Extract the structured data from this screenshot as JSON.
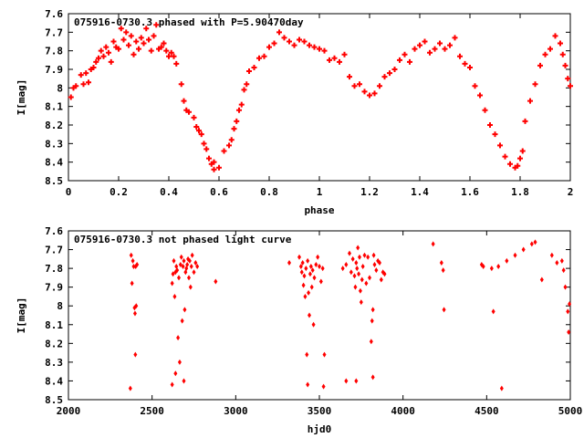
{
  "chart_data": [
    {
      "type": "scatter",
      "title": "075916-0730.3 phased with P=5.90470day",
      "xlabel": "phase",
      "ylabel": "I[mag]",
      "xlim": [
        0,
        2
      ],
      "ylim": [
        8.5,
        7.6
      ],
      "y_reversed": true,
      "grid": false,
      "marker_color": "#ff0000",
      "marker": "plus-filled",
      "xticks": [
        "0",
        "0.2",
        "0.4",
        "0.6",
        "0.8",
        "1",
        "1.2",
        "1.4",
        "1.6",
        "1.8",
        "2"
      ],
      "yticks": [
        "7.6",
        "7.7",
        "7.8",
        "7.9",
        "8",
        "8.1",
        "8.2",
        "8.3",
        "8.4",
        "8.5"
      ],
      "points": [
        [
          0.01,
          8.05
        ],
        [
          0.02,
          8.0
        ],
        [
          0.03,
          7.99
        ],
        [
          0.05,
          7.93
        ],
        [
          0.06,
          7.98
        ],
        [
          0.07,
          7.92
        ],
        [
          0.08,
          7.97
        ],
        [
          0.09,
          7.9
        ],
        [
          0.1,
          7.89
        ],
        [
          0.11,
          7.86
        ],
        [
          0.12,
          7.84
        ],
        [
          0.13,
          7.8
        ],
        [
          0.14,
          7.83
        ],
        [
          0.15,
          7.78
        ],
        [
          0.16,
          7.81
        ],
        [
          0.17,
          7.86
        ],
        [
          0.18,
          7.75
        ],
        [
          0.19,
          7.78
        ],
        [
          0.2,
          7.79
        ],
        [
          0.21,
          7.68
        ],
        [
          0.22,
          7.74
        ],
        [
          0.23,
          7.7
        ],
        [
          0.24,
          7.77
        ],
        [
          0.25,
          7.72
        ],
        [
          0.26,
          7.82
        ],
        [
          0.27,
          7.75
        ],
        [
          0.28,
          7.79
        ],
        [
          0.29,
          7.73
        ],
        [
          0.3,
          7.76
        ],
        [
          0.31,
          7.68
        ],
        [
          0.32,
          7.74
        ],
        [
          0.33,
          7.8
        ],
        [
          0.34,
          7.72
        ],
        [
          0.35,
          7.66
        ],
        [
          0.36,
          7.79
        ],
        [
          0.37,
          7.78
        ],
        [
          0.38,
          7.76
        ],
        [
          0.39,
          7.8
        ],
        [
          0.4,
          7.83
        ],
        [
          0.41,
          7.81
        ],
        [
          0.42,
          7.83
        ],
        [
          0.43,
          7.87
        ],
        [
          0.45,
          7.98
        ],
        [
          0.46,
          8.07
        ],
        [
          0.47,
          8.12
        ],
        [
          0.48,
          8.13
        ],
        [
          0.5,
          8.16
        ],
        [
          0.51,
          8.21
        ],
        [
          0.52,
          8.23
        ],
        [
          0.53,
          8.25
        ],
        [
          0.54,
          8.3
        ],
        [
          0.55,
          8.33
        ],
        [
          0.56,
          8.38
        ],
        [
          0.57,
          8.41
        ],
        [
          0.58,
          8.4
        ],
        [
          0.58,
          8.44
        ],
        [
          0.6,
          8.43
        ],
        [
          0.62,
          8.34
        ],
        [
          0.64,
          8.31
        ],
        [
          0.65,
          8.28
        ],
        [
          0.66,
          8.22
        ],
        [
          0.67,
          8.18
        ],
        [
          0.68,
          8.12
        ],
        [
          0.69,
          8.09
        ],
        [
          0.7,
          8.01
        ],
        [
          0.71,
          7.98
        ],
        [
          0.72,
          7.91
        ],
        [
          0.74,
          7.89
        ],
        [
          0.76,
          7.84
        ],
        [
          0.78,
          7.83
        ],
        [
          0.8,
          7.78
        ],
        [
          0.82,
          7.76
        ],
        [
          0.84,
          7.7
        ],
        [
          0.86,
          7.73
        ],
        [
          0.88,
          7.75
        ],
        [
          0.9,
          7.77
        ],
        [
          0.92,
          7.74
        ],
        [
          0.94,
          7.75
        ],
        [
          0.96,
          7.77
        ],
        [
          0.98,
          7.78
        ],
        [
          1.0,
          7.79
        ],
        [
          1.02,
          7.8
        ],
        [
          1.04,
          7.85
        ],
        [
          1.06,
          7.84
        ],
        [
          1.08,
          7.86
        ],
        [
          1.1,
          7.82
        ],
        [
          1.12,
          7.94
        ],
        [
          1.14,
          7.99
        ],
        [
          1.16,
          7.98
        ],
        [
          1.18,
          8.02
        ],
        [
          1.2,
          8.04
        ],
        [
          1.22,
          8.03
        ],
        [
          1.24,
          7.99
        ],
        [
          1.26,
          7.94
        ],
        [
          1.28,
          7.92
        ],
        [
          1.3,
          7.9
        ],
        [
          1.32,
          7.85
        ],
        [
          1.34,
          7.82
        ],
        [
          1.36,
          7.86
        ],
        [
          1.38,
          7.79
        ],
        [
          1.4,
          7.77
        ],
        [
          1.42,
          7.75
        ],
        [
          1.44,
          7.81
        ],
        [
          1.46,
          7.79
        ],
        [
          1.48,
          7.76
        ],
        [
          1.5,
          7.79
        ],
        [
          1.52,
          7.77
        ],
        [
          1.54,
          7.73
        ],
        [
          1.56,
          7.83
        ],
        [
          1.58,
          7.87
        ],
        [
          1.6,
          7.89
        ],
        [
          1.62,
          7.99
        ],
        [
          1.64,
          8.04
        ],
        [
          1.66,
          8.12
        ],
        [
          1.68,
          8.2
        ],
        [
          1.7,
          8.25
        ],
        [
          1.72,
          8.31
        ],
        [
          1.74,
          8.37
        ],
        [
          1.76,
          8.41
        ],
        [
          1.78,
          8.43
        ],
        [
          1.79,
          8.42
        ],
        [
          1.8,
          8.38
        ],
        [
          1.81,
          8.34
        ],
        [
          1.82,
          8.18
        ],
        [
          1.84,
          8.07
        ],
        [
          1.86,
          7.98
        ],
        [
          1.88,
          7.88
        ],
        [
          1.9,
          7.82
        ],
        [
          1.92,
          7.79
        ],
        [
          1.94,
          7.72
        ],
        [
          1.96,
          7.76
        ],
        [
          1.97,
          7.82
        ],
        [
          1.98,
          7.88
        ],
        [
          1.99,
          7.95
        ],
        [
          2.0,
          7.99
        ]
      ]
    },
    {
      "type": "scatter",
      "title": "075916-0730.3 not phased light curve",
      "xlabel": "hjd0",
      "ylabel": "I[mag]",
      "xlim": [
        2000,
        5000
      ],
      "ylim": [
        8.5,
        7.6
      ],
      "y_reversed": true,
      "grid": false,
      "marker_color": "#ff0000",
      "marker": "diamond-small",
      "xticks": [
        "2000",
        "2500",
        "3000",
        "3500",
        "4000",
        "4500",
        "5000"
      ],
      "yticks": [
        "7.6",
        "7.7",
        "7.8",
        "7.9",
        "8",
        "8.1",
        "8.2",
        "8.3",
        "8.4",
        "8.5"
      ],
      "points": [
        [
          2375,
          7.73
        ],
        [
          2380,
          7.88
        ],
        [
          2385,
          7.76
        ],
        [
          2390,
          7.79
        ],
        [
          2395,
          8.01
        ],
        [
          2398,
          8.04
        ],
        [
          2400,
          8.26
        ],
        [
          2402,
          7.79
        ],
        [
          2405,
          8.0
        ],
        [
          2410,
          7.78
        ],
        [
          2370,
          8.44
        ],
        [
          2620,
          7.88
        ],
        [
          2625,
          7.83
        ],
        [
          2630,
          7.76
        ],
        [
          2635,
          7.95
        ],
        [
          2640,
          7.82
        ],
        [
          2645,
          7.79
        ],
        [
          2650,
          7.81
        ],
        [
          2655,
          8.17
        ],
        [
          2660,
          7.85
        ],
        [
          2665,
          8.3
        ],
        [
          2670,
          7.78
        ],
        [
          2675,
          7.74
        ],
        [
          2680,
          8.08
        ],
        [
          2685,
          7.79
        ],
        [
          2690,
          7.76
        ],
        [
          2695,
          8.02
        ],
        [
          2700,
          7.82
        ],
        [
          2705,
          7.8
        ],
        [
          2710,
          7.78
        ],
        [
          2715,
          7.75
        ],
        [
          2720,
          7.85
        ],
        [
          2725,
          7.76
        ],
        [
          2730,
          7.9
        ],
        [
          2735,
          7.79
        ],
        [
          2740,
          7.73
        ],
        [
          2750,
          7.82
        ],
        [
          2760,
          7.77
        ],
        [
          2770,
          7.79
        ],
        [
          2620,
          8.42
        ],
        [
          2640,
          8.36
        ],
        [
          2690,
          8.4
        ],
        [
          2880,
          7.87
        ],
        [
          3380,
          7.74
        ],
        [
          3390,
          7.79
        ],
        [
          3395,
          7.82
        ],
        [
          3400,
          7.77
        ],
        [
          3405,
          7.89
        ],
        [
          3410,
          7.84
        ],
        [
          3415,
          7.95
        ],
        [
          3420,
          7.8
        ],
        [
          3425,
          8.26
        ],
        [
          3430,
          7.76
        ],
        [
          3435,
          7.93
        ],
        [
          3440,
          8.05
        ],
        [
          3445,
          7.83
        ],
        [
          3450,
          7.79
        ],
        [
          3455,
          7.9
        ],
        [
          3460,
          7.81
        ],
        [
          3465,
          8.1
        ],
        [
          3470,
          7.85
        ],
        [
          3480,
          7.78
        ],
        [
          3490,
          7.74
        ],
        [
          3500,
          7.79
        ],
        [
          3510,
          7.87
        ],
        [
          3520,
          7.8
        ],
        [
          3430,
          8.42
        ],
        [
          3525,
          8.43
        ],
        [
          3530,
          8.26
        ],
        [
          3320,
          7.77
        ],
        [
          3640,
          7.8
        ],
        [
          3660,
          7.78
        ],
        [
          3680,
          7.72
        ],
        [
          3690,
          7.82
        ],
        [
          3700,
          7.75
        ],
        [
          3710,
          7.84
        ],
        [
          3715,
          7.9
        ],
        [
          3720,
          7.77
        ],
        [
          3725,
          7.8
        ],
        [
          3730,
          7.69
        ],
        [
          3735,
          7.83
        ],
        [
          3740,
          7.74
        ],
        [
          3745,
          7.92
        ],
        [
          3750,
          7.98
        ],
        [
          3755,
          7.86
        ],
        [
          3760,
          7.79
        ],
        [
          3770,
          7.73
        ],
        [
          3780,
          7.88
        ],
        [
          3790,
          7.74
        ],
        [
          3800,
          7.85
        ],
        [
          3810,
          8.19
        ],
        [
          3815,
          8.08
        ],
        [
          3820,
          8.02
        ],
        [
          3825,
          7.73
        ],
        [
          3830,
          7.78
        ],
        [
          3840,
          7.81
        ],
        [
          3850,
          7.76
        ],
        [
          3860,
          7.77
        ],
        [
          3870,
          7.86
        ],
        [
          3880,
          7.82
        ],
        [
          3890,
          7.83
        ],
        [
          3660,
          8.4
        ],
        [
          3720,
          8.4
        ],
        [
          3820,
          8.38
        ],
        [
          4180,
          7.67
        ],
        [
          4230,
          7.77
        ],
        [
          4240,
          7.81
        ],
        [
          4245,
          8.02
        ],
        [
          4470,
          7.78
        ],
        [
          4480,
          7.79
        ],
        [
          4530,
          7.8
        ],
        [
          4540,
          8.03
        ],
        [
          4570,
          7.79
        ],
        [
          4590,
          8.44
        ],
        [
          4620,
          7.76
        ],
        [
          4670,
          7.73
        ],
        [
          4720,
          7.7
        ],
        [
          4770,
          7.67
        ],
        [
          4790,
          7.66
        ],
        [
          4830,
          7.86
        ],
        [
          4890,
          7.73
        ],
        [
          4920,
          7.77
        ],
        [
          4950,
          7.76
        ],
        [
          4960,
          7.81
        ],
        [
          4970,
          7.9
        ],
        [
          4985,
          8.03
        ],
        [
          4990,
          8.14
        ],
        [
          4995,
          7.99
        ]
      ]
    }
  ]
}
